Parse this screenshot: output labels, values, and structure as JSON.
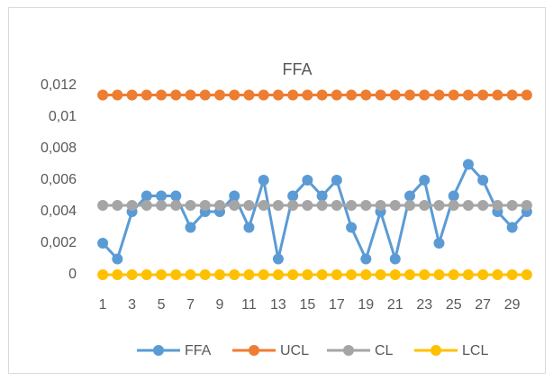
{
  "chart_data": {
    "type": "line",
    "title": "FFA",
    "categories": [
      1,
      null,
      3,
      null,
      5,
      null,
      7,
      null,
      9,
      null,
      11,
      null,
      13,
      null,
      15,
      null,
      17,
      null,
      19,
      null,
      21,
      null,
      23,
      null,
      25,
      null,
      27,
      null,
      29,
      null
    ],
    "series": [
      {
        "name": "FFA",
        "color": "#5b9bd5",
        "values": [
          0.002,
          0.001,
          0.004,
          0.005,
          0.005,
          0.005,
          0.003,
          0.004,
          0.004,
          0.005,
          0.003,
          0.006,
          0.001,
          0.005,
          0.006,
          0.005,
          0.006,
          0.003,
          0.001,
          0.004,
          0.001,
          0.005,
          0.006,
          0.002,
          0.005,
          0.007,
          0.006,
          0.004,
          0.003,
          0.004
        ]
      },
      {
        "name": "UCL",
        "color": "#ed7d31",
        "values": [
          0.0114,
          0.0114,
          0.0114,
          0.0114,
          0.0114,
          0.0114,
          0.0114,
          0.0114,
          0.0114,
          0.0114,
          0.0114,
          0.0114,
          0.0114,
          0.0114,
          0.0114,
          0.0114,
          0.0114,
          0.0114,
          0.0114,
          0.0114,
          0.0114,
          0.0114,
          0.0114,
          0.0114,
          0.0114,
          0.0114,
          0.0114,
          0.0114,
          0.0114,
          0.0114
        ]
      },
      {
        "name": "CL",
        "color": "#a5a5a5",
        "values": [
          0.0044,
          0.0044,
          0.0044,
          0.0044,
          0.0044,
          0.0044,
          0.0044,
          0.0044,
          0.0044,
          0.0044,
          0.0044,
          0.0044,
          0.0044,
          0.0044,
          0.0044,
          0.0044,
          0.0044,
          0.0044,
          0.0044,
          0.0044,
          0.0044,
          0.0044,
          0.0044,
          0.0044,
          0.0044,
          0.0044,
          0.0044,
          0.0044,
          0.0044,
          0.0044
        ]
      },
      {
        "name": "LCL",
        "color": "#ffc000",
        "values": [
          0,
          0,
          0,
          0,
          0,
          0,
          0,
          0,
          0,
          0,
          0,
          0,
          0,
          0,
          0,
          0,
          0,
          0,
          0,
          0,
          0,
          0,
          0,
          0,
          0,
          0,
          0,
          0,
          0,
          0
        ]
      }
    ],
    "ylim": [
      0,
      0.012
    ],
    "yticks": [
      0,
      {
        "value": 0.002,
        "label": "0,002"
      },
      {
        "value": 0.004,
        "label": "0,004"
      },
      {
        "value": 0.006,
        "label": "0,006"
      },
      {
        "value": 0.008,
        "label": "0,008"
      },
      {
        "value": 0.01,
        "label": "0,01"
      },
      {
        "value": 0.012,
        "label": "0,012"
      }
    ],
    "grid": false,
    "legend": "bottom"
  }
}
